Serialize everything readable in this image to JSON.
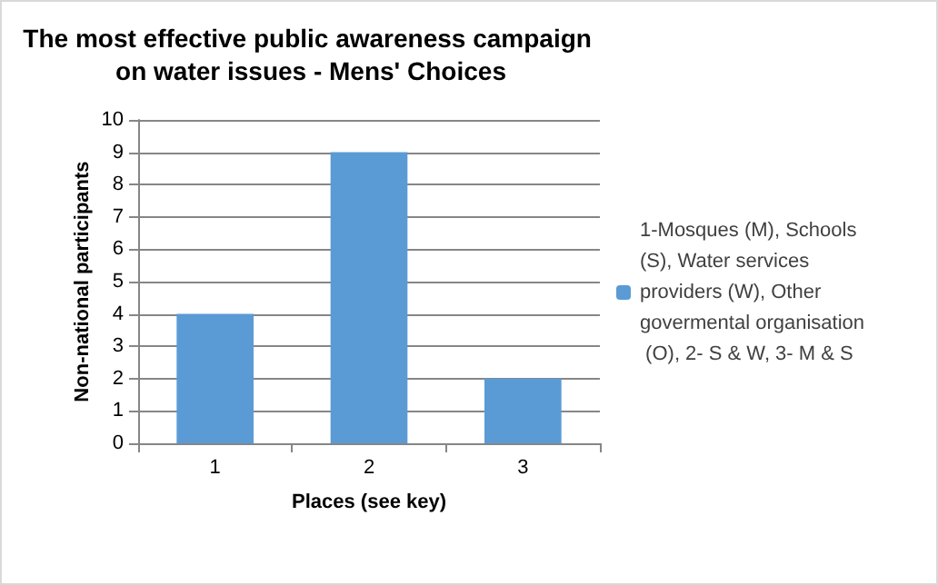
{
  "chart_data": {
    "type": "bar",
    "title": "The most effective public awareness campaign on water issues - Mens' Choices",
    "xlabel": "Places (see key)",
    "ylabel": "Non-national participants",
    "categories": [
      "1",
      "2",
      "3"
    ],
    "series": [
      {
        "name": "1-Mosques (M), Schools (S), Water services providers (W), Other govermental organisation (O), 2- S & W, 3- M & S",
        "color": "#5b9bd5",
        "values": [
          4,
          9,
          2
        ]
      }
    ],
    "ylim": [
      0,
      10
    ],
    "yticks": [
      0,
      1,
      2,
      3,
      4,
      5,
      6,
      7,
      8,
      9,
      10
    ],
    "grid": "y",
    "legend": "right"
  }
}
